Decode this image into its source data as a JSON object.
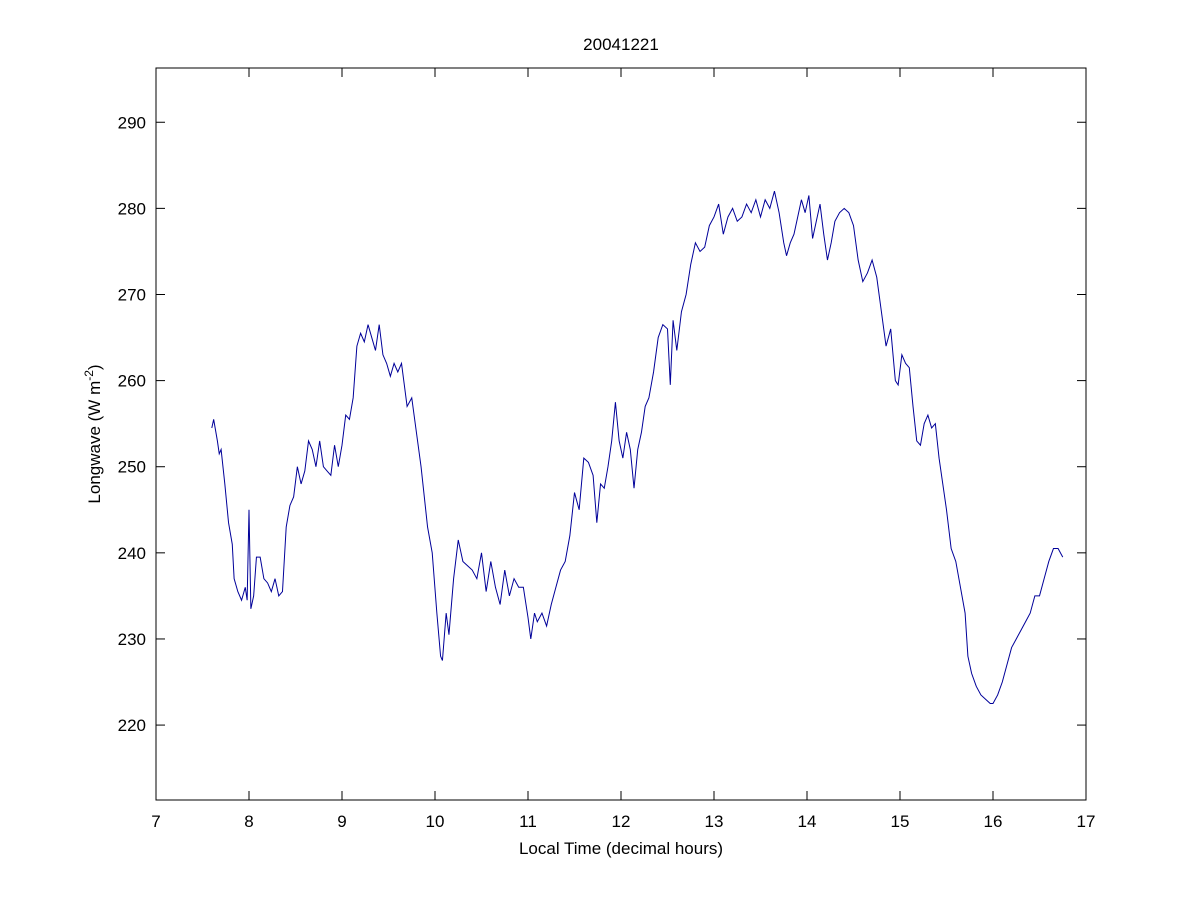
{
  "chart_data": {
    "type": "line",
    "title": "20041221",
    "xlabel": "Local Time (decimal hours)",
    "ylabel_parts": [
      "Longwave (W m",
      "-2",
      ")"
    ],
    "xlim": [
      7,
      17
    ],
    "ylim": [
      211.3,
      296.3
    ],
    "xticks": [
      7,
      8,
      9,
      10,
      11,
      12,
      13,
      14,
      15,
      16,
      17
    ],
    "yticks": [
      220,
      230,
      240,
      250,
      260,
      270,
      280,
      290
    ],
    "grid": false,
    "color": "#000099",
    "x": [
      7.6,
      7.62,
      7.66,
      7.68,
      7.7,
      7.74,
      7.78,
      7.82,
      7.84,
      7.88,
      7.92,
      7.96,
      7.98,
      8.0,
      8.02,
      8.05,
      8.08,
      8.12,
      8.16,
      8.2,
      8.24,
      8.28,
      8.32,
      8.36,
      8.4,
      8.44,
      8.48,
      8.52,
      8.56,
      8.6,
      8.64,
      8.68,
      8.72,
      8.76,
      8.8,
      8.84,
      8.88,
      8.92,
      8.96,
      9.0,
      9.04,
      9.08,
      9.12,
      9.16,
      9.2,
      9.24,
      9.28,
      9.32,
      9.36,
      9.4,
      9.44,
      9.48,
      9.52,
      9.56,
      9.6,
      9.64,
      9.7,
      9.75,
      9.8,
      9.85,
      9.92,
      9.97,
      10.02,
      10.06,
      10.08,
      10.12,
      10.15,
      10.2,
      10.25,
      10.3,
      10.35,
      10.4,
      10.45,
      10.5,
      10.55,
      10.6,
      10.65,
      10.7,
      10.75,
      10.8,
      10.85,
      10.9,
      10.95,
      11.0,
      11.03,
      11.07,
      11.1,
      11.15,
      11.2,
      11.25,
      11.3,
      11.35,
      11.4,
      11.45,
      11.5,
      11.55,
      11.6,
      11.65,
      11.7,
      11.74,
      11.78,
      11.82,
      11.86,
      11.9,
      11.94,
      11.98,
      12.02,
      12.06,
      12.1,
      12.14,
      12.18,
      12.22,
      12.26,
      12.3,
      12.35,
      12.4,
      12.45,
      12.5,
      12.53,
      12.56,
      12.6,
      12.65,
      12.7,
      12.75,
      12.8,
      12.85,
      12.9,
      12.95,
      13.0,
      13.05,
      13.1,
      13.15,
      13.2,
      13.25,
      13.3,
      13.35,
      13.4,
      13.45,
      13.5,
      13.55,
      13.6,
      13.65,
      13.7,
      13.75,
      13.78,
      13.82,
      13.86,
      13.9,
      13.94,
      13.98,
      14.02,
      14.06,
      14.1,
      14.14,
      14.18,
      14.22,
      14.26,
      14.3,
      14.35,
      14.4,
      14.45,
      14.5,
      14.55,
      14.6,
      14.65,
      14.7,
      14.75,
      14.8,
      14.85,
      14.9,
      14.95,
      14.98,
      15.02,
      15.06,
      15.1,
      15.14,
      15.18,
      15.22,
      15.26,
      15.3,
      15.34,
      15.38,
      15.42,
      15.46,
      15.5,
      15.55,
      15.6,
      15.65,
      15.7,
      15.73,
      15.77,
      15.82,
      15.87,
      15.92,
      15.97,
      16.0,
      16.05,
      16.1,
      16.15,
      16.2,
      16.25,
      16.3,
      16.35,
      16.4,
      16.45,
      16.5,
      16.55,
      16.6,
      16.65,
      16.7,
      16.75
    ],
    "values": [
      254.5,
      255.5,
      253,
      251.5,
      252,
      248,
      243.5,
      241,
      237,
      235.5,
      234.5,
      236,
      234.5,
      245,
      233.5,
      235,
      239.5,
      239.5,
      237,
      236.5,
      235.5,
      237,
      235,
      235.5,
      243,
      245.5,
      246.5,
      250,
      248,
      249.5,
      253,
      252,
      250,
      253,
      250,
      249.5,
      249,
      252.5,
      250,
      252.5,
      256,
      255.5,
      258,
      264,
      265.5,
      264.5,
      266.5,
      265,
      263.5,
      266.5,
      263,
      262,
      260.5,
      262,
      261,
      262,
      257,
      258,
      254,
      250,
      243,
      240,
      233,
      228,
      227.5,
      233,
      230.5,
      237,
      241.5,
      239,
      238.5,
      238,
      237,
      240,
      235.5,
      239,
      236,
      234,
      238,
      235,
      237,
      236,
      236,
      232.5,
      230,
      233,
      232,
      233,
      231.5,
      234,
      236,
      238,
      239,
      242,
      247,
      245,
      251,
      250.5,
      249,
      243.5,
      248,
      247.5,
      250,
      253,
      257.5,
      253,
      251,
      254,
      252,
      247.5,
      252,
      254,
      257,
      258,
      261,
      265,
      266.5,
      266,
      259.5,
      267,
      263.5,
      268,
      270,
      273.5,
      276,
      275,
      275.5,
      278,
      279,
      280.5,
      277,
      279,
      280,
      278.5,
      279,
      280.5,
      279.5,
      281,
      279,
      281,
      280,
      282,
      279.5,
      276,
      274.5,
      276,
      277,
      279,
      281,
      279.5,
      281.5,
      276.5,
      278.5,
      280.5,
      277,
      274,
      276,
      278.5,
      279.5,
      280,
      279.5,
      278,
      274,
      271.5,
      272.5,
      274,
      272,
      268,
      264,
      266,
      260,
      259.5,
      263,
      262,
      261.5,
      257,
      253,
      252.5,
      255,
      256,
      254.5,
      255,
      251,
      248,
      245,
      240.5,
      239,
      236,
      233,
      228,
      226,
      224.5,
      223.5,
      223,
      222.5,
      222.5,
      223.5,
      225,
      227,
      229,
      230,
      231,
      232,
      233,
      235,
      235,
      237,
      239,
      240.5,
      240.5,
      239.5
    ]
  }
}
